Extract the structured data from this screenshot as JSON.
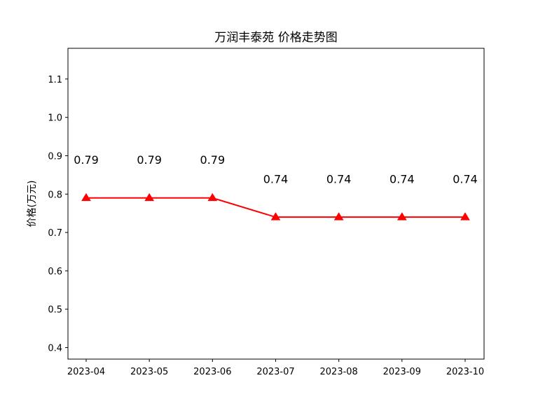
{
  "chart_data": {
    "type": "line",
    "title": "万润丰泰苑 价格走势图",
    "xlabel": "",
    "ylabel": "价格(万元)",
    "categories": [
      "2023-04",
      "2023-05",
      "2023-06",
      "2023-07",
      "2023-08",
      "2023-09",
      "2023-10"
    ],
    "series": [
      {
        "values": [
          0.79,
          0.79,
          0.79,
          0.74,
          0.74,
          0.74,
          0.74
        ],
        "color": "#ff0000",
        "marker": "triangle-up"
      }
    ],
    "data_labels": [
      "0.79",
      "0.79",
      "0.79",
      "0.74",
      "0.74",
      "0.74",
      "0.74"
    ],
    "ylim": [
      0.37,
      1.18
    ],
    "yticks": [
      0.4,
      0.5,
      0.6,
      0.7,
      0.8,
      0.9,
      1.0,
      1.1
    ],
    "ytick_labels": [
      "0.4",
      "0.5",
      "0.6",
      "0.7",
      "0.8",
      "0.9",
      "1.0",
      "1.1"
    ],
    "grid": false,
    "legend": "none"
  }
}
